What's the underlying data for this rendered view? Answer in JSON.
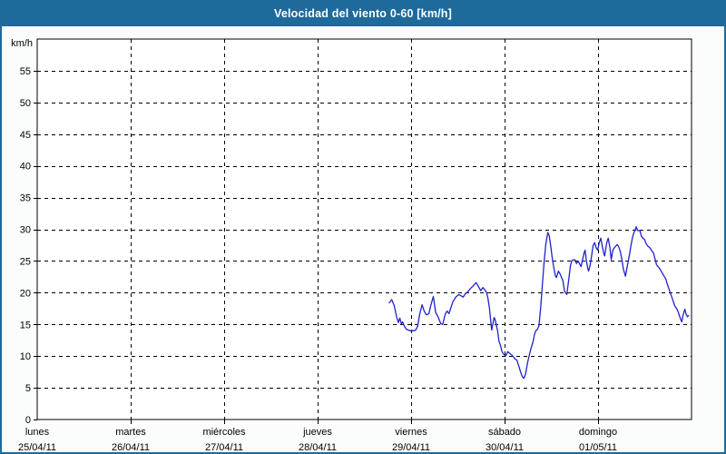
{
  "window": {
    "title": "Velocidad del viento 0-60 [km/h]"
  },
  "colors": {
    "titlebar_bg": "#1e6a9b",
    "frame_border": "#1e6a9b",
    "page_bg": "#fbfdfc",
    "plot_bg": "#ffffff",
    "grid": "#000000",
    "axis": "#000000",
    "line": "#2121cc",
    "title_text": "#ffffff",
    "label_text": "#000000"
  },
  "chart_data": {
    "type": "line",
    "title": "Velocidad del viento 0-60 [km/h]",
    "y_unit_label": "km/h",
    "ylim": [
      0,
      60
    ],
    "ytick_step": 5,
    "yticks": [
      0,
      5,
      10,
      15,
      20,
      25,
      30,
      35,
      40,
      45,
      50,
      55
    ],
    "grid": "dashed",
    "legend": "none",
    "x_days": [
      {
        "name": "lunes",
        "date": "25/04/11"
      },
      {
        "name": "martes",
        "date": "26/04/11"
      },
      {
        "name": "miércoles",
        "date": "27/04/11"
      },
      {
        "name": "jueves",
        "date": "28/04/11"
      },
      {
        "name": "viernes",
        "date": "29/04/11"
      },
      {
        "name": "sábado",
        "date": "30/04/11"
      },
      {
        "name": "domingo",
        "date": "01/05/11"
      }
    ],
    "series": [
      {
        "name": "velocidad del viento",
        "x_unit": "days since lunes 25/04/11 00:00",
        "y_unit": "km/h",
        "points": [
          [
            3.767,
            18.4
          ],
          [
            3.793,
            18.9
          ],
          [
            3.82,
            17.9
          ],
          [
            3.845,
            16.2
          ],
          [
            3.864,
            15.3
          ],
          [
            3.88,
            16.0
          ],
          [
            3.895,
            15.1
          ],
          [
            3.91,
            15.4
          ],
          [
            3.925,
            14.8
          ],
          [
            3.95,
            14.2
          ],
          [
            3.99,
            14.0
          ],
          [
            4.03,
            14.0
          ],
          [
            4.05,
            14.1
          ],
          [
            4.07,
            14.7
          ],
          [
            4.092,
            16.6
          ],
          [
            4.117,
            18.1
          ],
          [
            4.14,
            17.1
          ],
          [
            4.163,
            16.5
          ],
          [
            4.19,
            16.7
          ],
          [
            4.215,
            18.2
          ],
          [
            4.238,
            19.4
          ],
          [
            4.262,
            16.9
          ],
          [
            4.288,
            16.2
          ],
          [
            4.318,
            15.1
          ],
          [
            4.338,
            15.0
          ],
          [
            4.365,
            16.6
          ],
          [
            4.385,
            17.1
          ],
          [
            4.405,
            16.7
          ],
          [
            4.448,
            18.6
          ],
          [
            4.478,
            19.3
          ],
          [
            4.51,
            19.7
          ],
          [
            4.535,
            19.5
          ],
          [
            4.558,
            19.3
          ],
          [
            4.578,
            19.8
          ],
          [
            4.605,
            20.1
          ],
          [
            4.632,
            20.6
          ],
          [
            4.658,
            21.0
          ],
          [
            4.695,
            21.6
          ],
          [
            4.72,
            21.0
          ],
          [
            4.745,
            20.3
          ],
          [
            4.768,
            20.8
          ],
          [
            4.79,
            20.4
          ],
          [
            4.808,
            20.0
          ],
          [
            4.822,
            19.1
          ],
          [
            4.838,
            17.6
          ],
          [
            4.862,
            14.1
          ],
          [
            4.888,
            16.1
          ],
          [
            4.9,
            15.7
          ],
          [
            4.925,
            14.0
          ],
          [
            4.94,
            12.4
          ],
          [
            4.958,
            11.6
          ],
          [
            4.973,
            10.7
          ],
          [
            4.99,
            10.3
          ],
          [
            5.012,
            10.0
          ],
          [
            5.034,
            10.7
          ],
          [
            5.05,
            10.5
          ],
          [
            5.066,
            10.3
          ],
          [
            5.083,
            10.1
          ],
          [
            5.099,
            9.8
          ],
          [
            5.115,
            9.5
          ],
          [
            5.131,
            9.4
          ],
          [
            5.157,
            8.2
          ],
          [
            5.173,
            7.4
          ],
          [
            5.192,
            6.7
          ],
          [
            5.208,
            6.5
          ],
          [
            5.225,
            7.2
          ],
          [
            5.247,
            9.0
          ],
          [
            5.269,
            10.4
          ],
          [
            5.286,
            11.4
          ],
          [
            5.302,
            12.1
          ],
          [
            5.318,
            13.3
          ],
          [
            5.334,
            14.0
          ],
          [
            5.351,
            14.2
          ],
          [
            5.368,
            14.8
          ],
          [
            5.385,
            17.5
          ],
          [
            5.403,
            21.0
          ],
          [
            5.421,
            24.5
          ],
          [
            5.44,
            27.5
          ],
          [
            5.462,
            29.5
          ],
          [
            5.478,
            29.0
          ],
          [
            5.495,
            27.2
          ],
          [
            5.512,
            25.3
          ],
          [
            5.528,
            23.8
          ],
          [
            5.545,
            22.6
          ],
          [
            5.555,
            22.4
          ],
          [
            5.576,
            23.4
          ],
          [
            5.592,
            23.0
          ],
          [
            5.624,
            21.9
          ],
          [
            5.642,
            20.2
          ],
          [
            5.666,
            19.7
          ],
          [
            5.689,
            22.4
          ],
          [
            5.705,
            24.3
          ],
          [
            5.721,
            25.1
          ],
          [
            5.751,
            25.2
          ],
          [
            5.77,
            24.6
          ],
          [
            5.786,
            25.0
          ],
          [
            5.818,
            24.1
          ],
          [
            5.85,
            26.2
          ],
          [
            5.861,
            26.7
          ],
          [
            5.876,
            25.0
          ],
          [
            5.89,
            23.8
          ],
          [
            5.899,
            23.4
          ],
          [
            5.915,
            24.3
          ],
          [
            5.931,
            25.8
          ],
          [
            5.947,
            27.4
          ],
          [
            5.963,
            27.9
          ],
          [
            5.98,
            27.1
          ],
          [
            5.996,
            26.7
          ],
          [
            6.013,
            27.9
          ],
          [
            6.029,
            28.6
          ],
          [
            6.045,
            27.4
          ],
          [
            6.061,
            26.2
          ],
          [
            6.071,
            25.8
          ],
          [
            6.093,
            27.9
          ],
          [
            6.109,
            28.6
          ],
          [
            6.126,
            27.2
          ],
          [
            6.141,
            25.2
          ],
          [
            6.158,
            26.7
          ],
          [
            6.174,
            27.1
          ],
          [
            6.206,
            27.6
          ],
          [
            6.222,
            27.2
          ],
          [
            6.238,
            26.5
          ],
          [
            6.254,
            25.3
          ],
          [
            6.27,
            23.8
          ],
          [
            6.293,
            22.6
          ],
          [
            6.312,
            24.1
          ],
          [
            6.334,
            25.8
          ],
          [
            6.35,
            27.2
          ],
          [
            6.367,
            28.6
          ],
          [
            6.383,
            29.4
          ],
          [
            6.409,
            30.4
          ],
          [
            6.422,
            29.8
          ],
          [
            6.448,
            29.8
          ],
          [
            6.464,
            28.9
          ],
          [
            6.481,
            28.6
          ],
          [
            6.497,
            28.4
          ],
          [
            6.513,
            27.8
          ],
          [
            6.529,
            27.4
          ],
          [
            6.546,
            27.2
          ],
          [
            6.562,
            26.9
          ],
          [
            6.594,
            26.2
          ],
          [
            6.61,
            25.3
          ],
          [
            6.626,
            24.4
          ],
          [
            6.643,
            24.1
          ],
          [
            6.659,
            23.8
          ],
          [
            6.675,
            23.4
          ],
          [
            6.691,
            23.0
          ],
          [
            6.707,
            22.6
          ],
          [
            6.724,
            22.2
          ],
          [
            6.74,
            21.4
          ],
          [
            6.756,
            20.7
          ],
          [
            6.772,
            20.0
          ],
          [
            6.789,
            19.3
          ],
          [
            6.805,
            18.6
          ],
          [
            6.821,
            17.9
          ],
          [
            6.837,
            17.6
          ],
          [
            6.854,
            17.1
          ],
          [
            6.87,
            16.4
          ],
          [
            6.886,
            15.7
          ],
          [
            6.896,
            15.4
          ],
          [
            6.909,
            16.4
          ],
          [
            6.928,
            17.4
          ],
          [
            6.942,
            16.6
          ],
          [
            6.957,
            16.2
          ],
          [
            6.967,
            16.4
          ]
        ]
      }
    ]
  }
}
